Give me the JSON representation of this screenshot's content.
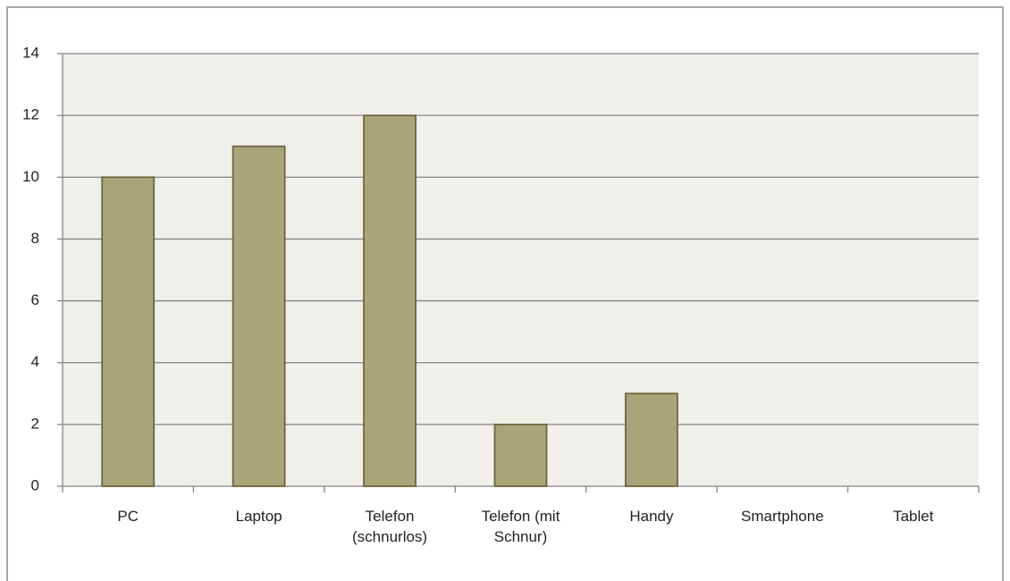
{
  "chart_data": {
    "type": "bar",
    "categories": [
      "PC",
      "Laptop",
      "Telefon (schnurlos)",
      "Telefon (mit Schnur)",
      "Handy",
      "Smartphone",
      "Tablet"
    ],
    "values": [
      10,
      11,
      12,
      2,
      3,
      0,
      0
    ],
    "color": "#a8a57a",
    "ylim": [
      0,
      14
    ],
    "yticks": [
      0,
      2,
      4,
      6,
      8,
      10,
      12,
      14
    ],
    "grid": true
  }
}
